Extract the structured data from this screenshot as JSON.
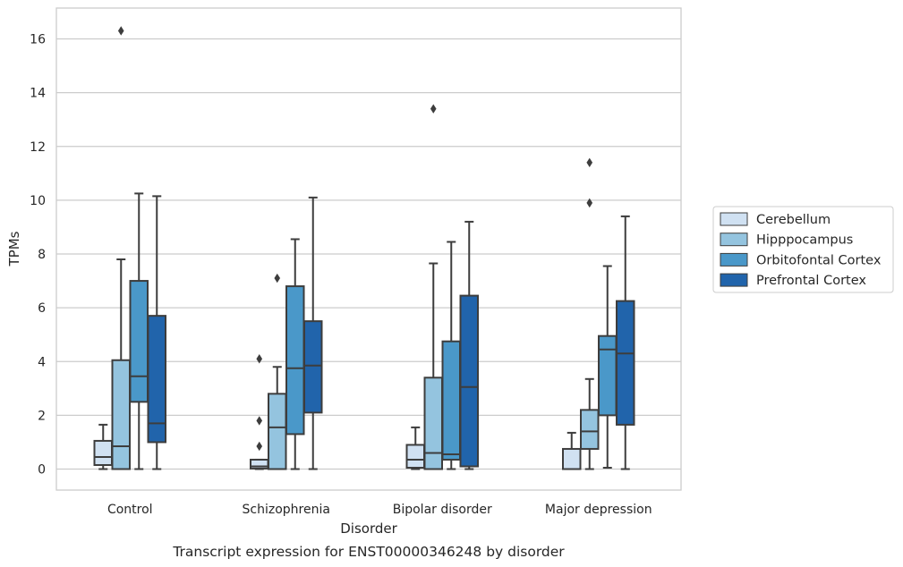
{
  "chart_data": {
    "type": "box",
    "caption": "Transcript expression for ENST00000346248 by disorder",
    "xlabel": "Disorder",
    "ylabel": "TPMs",
    "ylim": [
      -0.75,
      17.1
    ],
    "yticks": [
      0,
      2,
      4,
      6,
      8,
      10,
      12,
      14,
      16
    ],
    "grid": true,
    "legend_position": "right",
    "categories": [
      "Control",
      "Schizophrenia",
      "Bipolar disorder",
      "Major depression"
    ],
    "series": [
      {
        "name": "Cerebellum",
        "color": "#d0e1f2",
        "boxes": [
          {
            "whislo": 0.0,
            "q1": 0.15,
            "med": 0.45,
            "q3": 1.05,
            "whishi": 1.65,
            "fliers": []
          },
          {
            "whislo": 0.0,
            "q1": 0.02,
            "med": 0.1,
            "q3": 0.35,
            "whishi": 0.35,
            "fliers": [
              0.85,
              1.8,
              4.1
            ]
          },
          {
            "whislo": 0.0,
            "q1": 0.05,
            "med": 0.35,
            "q3": 0.9,
            "whishi": 1.55,
            "fliers": []
          },
          {
            "whislo": 0.0,
            "q1": 0.0,
            "med": 0.0,
            "q3": 0.75,
            "whishi": 1.35,
            "fliers": []
          }
        ]
      },
      {
        "name": "Hipppocampus",
        "color": "#94c4df",
        "boxes": [
          {
            "whislo": 0.0,
            "q1": 0.0,
            "med": 0.85,
            "q3": 4.05,
            "whishi": 7.8,
            "fliers": [
              16.3
            ]
          },
          {
            "whislo": 0.0,
            "q1": 0.0,
            "med": 1.55,
            "q3": 2.8,
            "whishi": 3.8,
            "fliers": [
              7.1
            ]
          },
          {
            "whislo": 0.0,
            "q1": 0.0,
            "med": 0.6,
            "q3": 3.4,
            "whishi": 7.65,
            "fliers": [
              13.4
            ]
          },
          {
            "whislo": 0.0,
            "q1": 0.75,
            "med": 1.4,
            "q3": 2.2,
            "whishi": 3.35,
            "fliers": [
              9.9,
              11.4
            ]
          }
        ]
      },
      {
        "name": "Orbitofontal Cortex",
        "color": "#4a98c9",
        "boxes": [
          {
            "whislo": 0.0,
            "q1": 2.5,
            "med": 3.45,
            "q3": 7.0,
            "whishi": 10.25,
            "fliers": []
          },
          {
            "whislo": 0.0,
            "q1": 1.3,
            "med": 3.75,
            "q3": 6.8,
            "whishi": 8.55,
            "fliers": []
          },
          {
            "whislo": 0.0,
            "q1": 0.35,
            "med": 0.55,
            "q3": 4.75,
            "whishi": 8.45,
            "fliers": []
          },
          {
            "whislo": 0.05,
            "q1": 2.0,
            "med": 4.45,
            "q3": 4.95,
            "whishi": 7.55,
            "fliers": []
          }
        ]
      },
      {
        "name": "Prefrontal Cortex",
        "color": "#2164ab",
        "boxes": [
          {
            "whislo": 0.0,
            "q1": 1.0,
            "med": 1.7,
            "q3": 5.7,
            "whishi": 10.15,
            "fliers": []
          },
          {
            "whislo": 0.0,
            "q1": 2.1,
            "med": 3.85,
            "q3": 5.5,
            "whishi": 10.1,
            "fliers": []
          },
          {
            "whislo": 0.0,
            "q1": 0.1,
            "med": 3.05,
            "q3": 6.45,
            "whishi": 9.2,
            "fliers": []
          },
          {
            "whislo": 0.0,
            "q1": 1.65,
            "med": 4.3,
            "q3": 6.25,
            "whishi": 9.4,
            "fliers": []
          }
        ]
      }
    ]
  }
}
